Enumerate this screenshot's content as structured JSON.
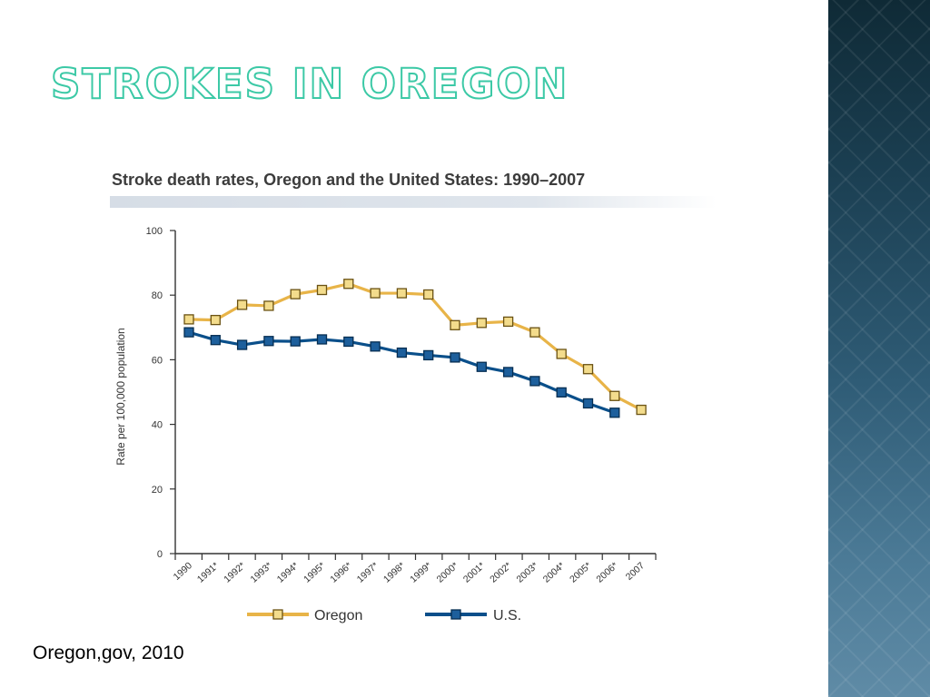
{
  "slide": {
    "title": "Strokes in Oregon",
    "source": "Oregon,gov, 2010"
  },
  "colors": {
    "title_outline": "#3cc9a6",
    "oregon": "#e8b448",
    "us": "#0a4f8a",
    "axis": "#333333"
  },
  "chart_data": {
    "type": "line",
    "title": "Stroke death rates, Oregon and the United States: 1990–2007",
    "ylabel": "Rate per 100,000 population",
    "xlabel": "",
    "ylim": [
      0,
      100
    ],
    "yticks": [
      "0",
      "20",
      "40",
      "60",
      "80",
      "100"
    ],
    "categories": [
      "1990",
      "1991*",
      "1992*",
      "1993*",
      "1994*",
      "1995*",
      "1996*",
      "1997*",
      "1998*",
      "1999*",
      "2000*",
      "2001*",
      "2002*",
      "2003*",
      "2004*",
      "2005*",
      "2006*",
      "2007"
    ],
    "series": [
      {
        "name": "Oregon",
        "color": "#e8b448",
        "values": [
          72.5,
          72.3,
          77,
          76.7,
          80.3,
          81.6,
          83.5,
          80.6,
          80.6,
          80.2,
          70.7,
          71.4,
          71.8,
          68.5,
          61.8,
          57.1,
          48.8,
          44.5
        ]
      },
      {
        "name": "U.S.",
        "color": "#0a4f8a",
        "values": [
          68.5,
          66.1,
          64.6,
          65.8,
          65.7,
          66.3,
          65.6,
          64.1,
          62.2,
          61.4,
          60.7,
          57.8,
          56.2,
          53.4,
          49.9,
          46.5,
          43.6,
          null
        ]
      }
    ],
    "legend": "bottom",
    "grid": false
  }
}
